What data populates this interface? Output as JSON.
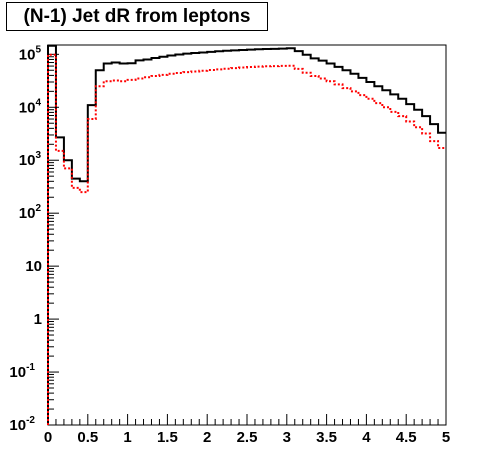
{
  "chart_data": {
    "type": "line",
    "title": "(N-1) Jet dR from leptons",
    "xlabel": "",
    "ylabel": "",
    "xlim": [
      0,
      5
    ],
    "ylim": [
      0.01,
      150000
    ],
    "yscale": "log",
    "grid": false,
    "x_ticks": [
      "0",
      "0.5",
      "1",
      "1.5",
      "2",
      "2.5",
      "3",
      "3.5",
      "4",
      "4.5",
      "5"
    ],
    "y_ticks": [
      {
        "value": 0.01,
        "base": "10",
        "exp": "-2"
      },
      {
        "value": 0.1,
        "base": "10",
        "exp": "-1"
      },
      {
        "value": 1,
        "base": "1",
        "exp": ""
      },
      {
        "value": 10,
        "base": "10",
        "exp": ""
      },
      {
        "value": 100,
        "base": "10",
        "exp": "2"
      },
      {
        "value": 1000,
        "base": "10",
        "exp": "3"
      },
      {
        "value": 10000,
        "base": "10",
        "exp": "4"
      },
      {
        "value": 100000,
        "base": "10",
        "exp": "5"
      }
    ],
    "bin_edges_start": 0.0,
    "bin_width": 0.1,
    "series": [
      {
        "color": "#000000",
        "style": "solid",
        "values": [
          145000,
          2700,
          1000,
          450,
          400,
          11000,
          50000,
          67000,
          70000,
          67000,
          68000,
          77000,
          80000,
          85000,
          90000,
          95000,
          99000,
          103000,
          106000,
          108000,
          111000,
          114000,
          117000,
          119000,
          121000,
          123000,
          125000,
          126000,
          127000,
          128000,
          130000,
          115000,
          98000,
          84000,
          76000,
          67000,
          58000,
          50000,
          43000,
          36000,
          30000,
          25000,
          21000,
          17500,
          14500,
          11500,
          9000,
          6800,
          4800,
          3300
        ]
      },
      {
        "color": "#ff0000",
        "style": "dotted",
        "values": [
          98000,
          1500,
          700,
          300,
          250,
          6000,
          25000,
          31000,
          32000,
          31000,
          33000,
          35000,
          37000,
          39000,
          41000,
          43000,
          44500,
          46000,
          47500,
          49000,
          50500,
          52000,
          53500,
          55000,
          56500,
          57500,
          58500,
          59500,
          60000,
          60500,
          61000,
          53000,
          45000,
          39000,
          35000,
          31000,
          27000,
          23000,
          20000,
          17000,
          14500,
          12000,
          10000,
          8200,
          6800,
          5400,
          4200,
          3200,
          2300,
          1700
        ]
      }
    ]
  }
}
